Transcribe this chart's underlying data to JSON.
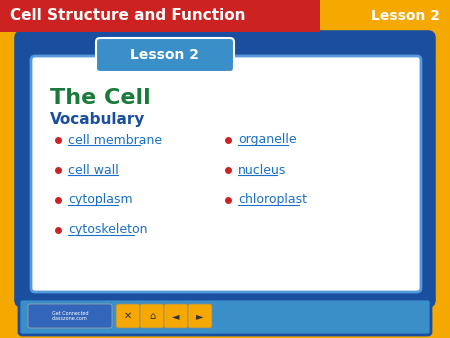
{
  "bg_color": "#F5A800",
  "header_bar_color": "#CC2222",
  "header_text": "Cell Structure and Function",
  "header_text_color": "#FFFFFF",
  "lesson_label_top_right": "Lesson 2",
  "lesson_label_color": "#FFFFFF",
  "outer_border_color": "#1A4FA0",
  "inner_bg_color": "#FFFFFF",
  "inner_border_color": "#5599DD",
  "lesson_pill_bg": "#3A8FC8",
  "lesson_pill_text": "Lesson 2",
  "lesson_pill_text_color": "#FFFFFF",
  "title_text": "The Cell",
  "title_color": "#1A7A3A",
  "vocab_text": "Vocabulary",
  "vocab_color": "#1A4FA0",
  "bullet_color": "#CC2222",
  "left_items": [
    "cell membrane",
    "cell wall",
    "cytoplasm",
    "cytoskeleton"
  ],
  "right_items": [
    "organelle",
    "nucleus",
    "chloroplast"
  ],
  "item_color": "#1A6FC8",
  "bottom_bar_color": "#3A8FC8",
  "nav_bg_color": "#F5A800"
}
